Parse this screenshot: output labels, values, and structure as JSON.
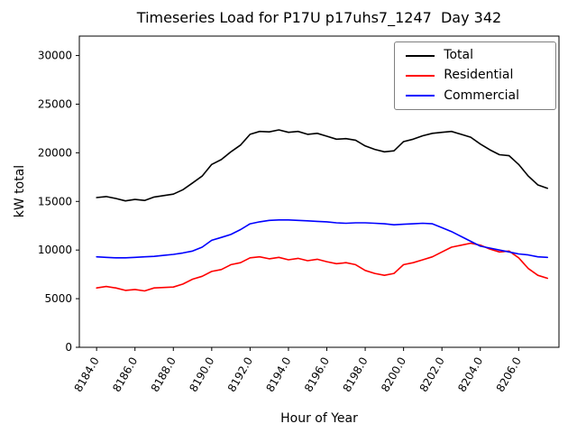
{
  "title": "Timeseries Load for P17U p17uhs7_1247  Day 342",
  "chart_data": {
    "type": "line",
    "title": "Timeseries Load for P17U p17uhs7_1247  Day 342",
    "xlabel": "Hour of Year",
    "ylabel": "kW total",
    "xlim": [
      8183.1,
      8208.1
    ],
    "ylim": [
      0,
      32000
    ],
    "grid": false,
    "legend_position": "upper right",
    "xtick_values": [
      8184,
      8186,
      8188,
      8190,
      8192,
      8194,
      8196,
      8198,
      8200,
      8202,
      8204,
      8206
    ],
    "xtick_labels": [
      "8184.0",
      "8186.0",
      "8188.0",
      "8190.0",
      "8192.0",
      "8194.0",
      "8196.0",
      "8198.0",
      "8200.0",
      "8202.0",
      "8204.0",
      "8206.0"
    ],
    "ytick_values": [
      0,
      5000,
      10000,
      15000,
      20000,
      25000,
      30000
    ],
    "ytick_labels": [
      "0",
      "5000",
      "10000",
      "15000",
      "20000",
      "25000",
      "30000"
    ],
    "x": [
      8184.0,
      8184.5,
      8185.0,
      8185.5,
      8186.0,
      8186.5,
      8187.0,
      8187.5,
      8188.0,
      8188.5,
      8189.0,
      8189.5,
      8190.0,
      8190.5,
      8191.0,
      8191.5,
      8192.0,
      8192.5,
      8193.0,
      8193.5,
      8194.0,
      8194.5,
      8195.0,
      8195.5,
      8196.0,
      8196.5,
      8197.0,
      8197.5,
      8198.0,
      8198.5,
      8199.0,
      8199.5,
      8200.0,
      8200.5,
      8201.0,
      8201.5,
      8202.0,
      8202.5,
      8203.0,
      8203.5,
      8204.0,
      8204.5,
      8205.0,
      8205.5,
      8206.0,
      8206.5,
      8207.0,
      8207.5
    ],
    "series": [
      {
        "name": "Total",
        "color": "#000000",
        "values": [
          15400,
          15500,
          15300,
          15050,
          15200,
          15100,
          15450,
          15600,
          15750,
          16200,
          16900,
          17600,
          18800,
          19300,
          20100,
          20800,
          21900,
          22200,
          22150,
          22350,
          22100,
          22200,
          21900,
          22000,
          21700,
          21400,
          21450,
          21300,
          20700,
          20350,
          20100,
          20200,
          21150,
          21400,
          21750,
          22000,
          22100,
          22200,
          21900,
          21600,
          20900,
          20300,
          19800,
          19700,
          18800,
          17600,
          16700,
          16350
        ]
      },
      {
        "name": "Residential",
        "color": "#ff0000",
        "values": [
          6100,
          6250,
          6100,
          5850,
          5950,
          5800,
          6100,
          6150,
          6200,
          6500,
          7000,
          7300,
          7800,
          8000,
          8500,
          8700,
          9200,
          9300,
          9100,
          9250,
          9000,
          9150,
          8900,
          9050,
          8800,
          8600,
          8700,
          8500,
          7900,
          7600,
          7400,
          7600,
          8500,
          8700,
          9000,
          9300,
          9800,
          10300,
          10500,
          10700,
          10500,
          10100,
          9800,
          9900,
          9200,
          8100,
          7400,
          7100
        ]
      },
      {
        "name": "Commercial",
        "color": "#0000ff",
        "values": [
          9300,
          9250,
          9200,
          9200,
          9250,
          9300,
          9350,
          9450,
          9550,
          9700,
          9900,
          10300,
          11000,
          11300,
          11600,
          12100,
          12700,
          12900,
          13050,
          13100,
          13100,
          13050,
          13000,
          12950,
          12900,
          12800,
          12750,
          12800,
          12800,
          12750,
          12700,
          12600,
          12650,
          12700,
          12750,
          12700,
          12300,
          11900,
          11400,
          10900,
          10400,
          10200,
          10000,
          9800,
          9600,
          9500,
          9300,
          9250
        ]
      }
    ]
  }
}
